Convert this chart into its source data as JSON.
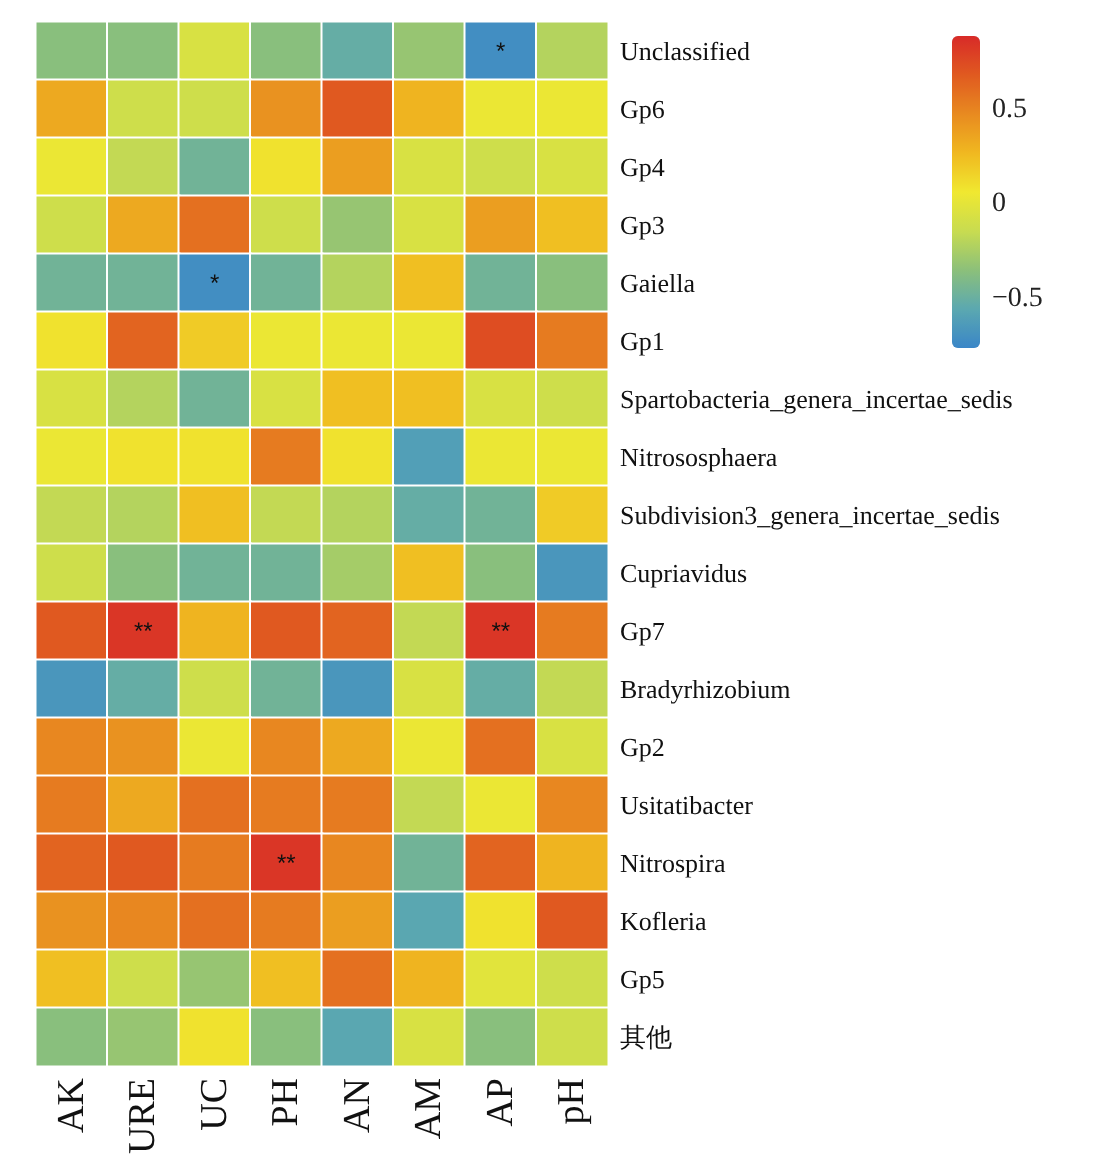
{
  "chart_data": {
    "type": "heatmap",
    "categories": [
      "AK",
      "URE",
      "UC",
      "PH",
      "AN",
      "AM",
      "AP",
      "pH"
    ],
    "y_categories": [
      "Unclassified",
      "Gp6",
      "Gp4",
      "Gp3",
      "Gaiella",
      "Gp1",
      "Spartobacteria_genera_incertae_sedis",
      "Nitrososphaera",
      "Subdivision3_genera_incertae_sedis",
      "Cupriavidus",
      "Gp7",
      "Bradyrhizobium",
      "Gp2",
      "Usitatibacter",
      "Nitrospira",
      "Kofleria",
      "Gp5",
      "其他"
    ],
    "cells": [
      [
        -0.35,
        -0.35,
        -0.05,
        -0.35,
        -0.5,
        -0.3,
        -0.7,
        -0.2
      ],
      [
        0.35,
        -0.1,
        -0.1,
        0.45,
        0.7,
        0.3,
        0.05,
        0.05
      ],
      [
        0.05,
        -0.15,
        -0.45,
        0.1,
        0.4,
        -0.05,
        -0.1,
        -0.05
      ],
      [
        -0.1,
        0.35,
        0.6,
        -0.1,
        -0.3,
        -0.05,
        0.4,
        0.25
      ],
      [
        -0.45,
        -0.45,
        -0.7,
        -0.45,
        -0.2,
        0.25,
        -0.45,
        -0.35
      ],
      [
        0.1,
        0.65,
        0.2,
        0.05,
        0.05,
        0.05,
        0.75,
        0.55
      ],
      [
        -0.05,
        -0.2,
        -0.45,
        -0.05,
        0.25,
        0.25,
        -0.05,
        -0.1
      ],
      [
        0.05,
        0.1,
        0.1,
        0.55,
        0.1,
        -0.6,
        0.05,
        0.05
      ],
      [
        -0.15,
        -0.2,
        0.25,
        -0.15,
        -0.2,
        -0.5,
        -0.45,
        0.2
      ],
      [
        -0.1,
        -0.35,
        -0.45,
        -0.45,
        -0.25,
        0.25,
        -0.35,
        -0.65
      ],
      [
        0.7,
        0.85,
        0.3,
        0.7,
        0.65,
        -0.15,
        0.85,
        0.55
      ],
      [
        -0.65,
        -0.5,
        -0.1,
        -0.45,
        -0.65,
        -0.05,
        -0.5,
        -0.15
      ],
      [
        0.5,
        0.45,
        0.05,
        0.5,
        0.35,
        0.05,
        0.6,
        -0.05
      ],
      [
        0.55,
        0.35,
        0.6,
        0.55,
        0.55,
        -0.15,
        0.05,
        0.5
      ],
      [
        0.65,
        0.7,
        0.55,
        0.85,
        0.5,
        -0.45,
        0.65,
        0.3
      ],
      [
        0.45,
        0.5,
        0.6,
        0.55,
        0.4,
        -0.55,
        0.1,
        0.7
      ],
      [
        0.25,
        -0.1,
        -0.3,
        0.25,
        0.6,
        0.3,
        0,
        -0.1
      ],
      [
        -0.35,
        -0.3,
        0.1,
        -0.35,
        -0.55,
        -0.05,
        -0.35,
        -0.1
      ]
    ],
    "cell_labels": [
      [
        null,
        null,
        null,
        null,
        null,
        null,
        "*",
        null
      ],
      [
        null,
        null,
        null,
        null,
        null,
        null,
        null,
        null
      ],
      [
        null,
        null,
        null,
        null,
        null,
        null,
        null,
        null
      ],
      [
        null,
        null,
        null,
        null,
        null,
        null,
        null,
        null
      ],
      [
        null,
        null,
        "*",
        null,
        null,
        null,
        null,
        null
      ],
      [
        null,
        null,
        null,
        null,
        null,
        null,
        null,
        null
      ],
      [
        null,
        null,
        null,
        null,
        null,
        null,
        null,
        null
      ],
      [
        null,
        null,
        null,
        null,
        null,
        null,
        null,
        null
      ],
      [
        null,
        null,
        null,
        null,
        null,
        null,
        null,
        null
      ],
      [
        null,
        null,
        null,
        null,
        null,
        null,
        null,
        null
      ],
      [
        null,
        "**",
        null,
        null,
        null,
        null,
        "**",
        null
      ],
      [
        null,
        null,
        null,
        null,
        null,
        null,
        null,
        null
      ],
      [
        null,
        null,
        null,
        null,
        null,
        null,
        null,
        null
      ],
      [
        null,
        null,
        null,
        null,
        null,
        null,
        null,
        null
      ],
      [
        null,
        null,
        null,
        "**",
        null,
        null,
        null,
        null
      ],
      [
        null,
        null,
        null,
        null,
        null,
        null,
        null,
        null
      ],
      [
        null,
        null,
        null,
        null,
        null,
        null,
        null,
        null
      ],
      [
        null,
        null,
        null,
        null,
        null,
        null,
        null,
        null
      ]
    ],
    "clim": [
      -0.75,
      0.9
    ],
    "cticks": [
      0.5,
      0,
      -0.5
    ]
  }
}
